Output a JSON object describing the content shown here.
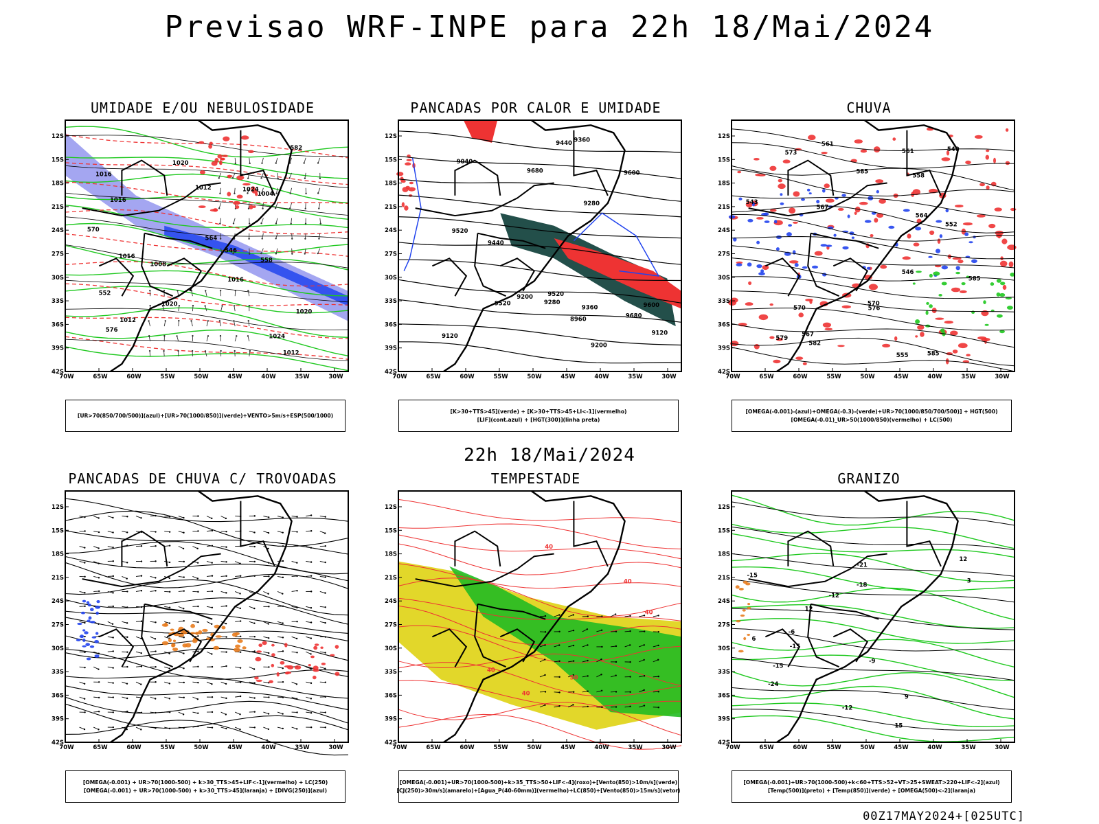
{
  "title": "Previsao WRF-INPE  para 22h 18/Mai/2024",
  "subtitle": "22h 18/Mai/2024",
  "footer": "00Z17MAY2024+[025UTC]",
  "axes": {
    "lat_labels": [
      "12S",
      "15S",
      "18S",
      "21S",
      "24S",
      "27S",
      "30S",
      "33S",
      "36S",
      "39S",
      "42S"
    ],
    "lon_labels": [
      "70W",
      "65W",
      "60W",
      "55W",
      "50W",
      "45W",
      "40W",
      "35W",
      "30W"
    ]
  },
  "colors": {
    "black": "#000000",
    "green": "#1ec81e",
    "red": "#ee3333",
    "blue": "#2244ee",
    "lavender": "#9a9cf0",
    "darkteal": "#234f4a",
    "yellow": "#e2d72a",
    "orange": "#e87c1e"
  },
  "panels": [
    {
      "id": "umidade",
      "title": "UMIDADE E/OU NEBULOSIDADE",
      "legend": [
        "[UR>70(850/700/500)](azul)+[UR>70(1000/850)](verde)+VENTO>5m/s+ESP(500/1000)"
      ],
      "contour_labels": [
        "1012",
        "1016",
        "1016",
        "1016",
        "1020",
        "1016",
        "1012",
        "1008",
        "1004",
        "1012",
        "1024",
        "1024",
        "1020",
        "1020",
        "546",
        "552",
        "558",
        "564",
        "570",
        "576",
        "582"
      ]
    },
    {
      "id": "pancadas-calor",
      "title": "PANCADAS POR CALOR E UMIDADE",
      "legend": [
        "[K>30+TTS>45](verde) + [K>30+TTS>45+LI<-1](vermelho)",
        "[LIF](cont.azul) + [HGT(300)](linha preta)"
      ],
      "contour_labels": [
        "9680",
        "9600",
        "9520",
        "9440",
        "9360",
        "9280",
        "9200",
        "9120",
        "9040",
        "8960",
        "9520",
        "9440",
        "9360",
        "9280",
        "9200",
        "9120",
        "9680",
        "9600",
        "9520"
      ]
    },
    {
      "id": "chuva",
      "title": "CHUVA",
      "legend": [
        "[OMEGA(-0.001)-(azul)+OMEGA(-0.3)-(verde)+UR>70(1000/850/700/500)] + HGT(500)",
        "[OMEGA(-0.01)_UR>50(1000/850)(vermelho) + LC(500)"
      ],
      "contour_labels": [
        "585",
        "585",
        "576",
        "579",
        "570",
        "567",
        "561",
        "558",
        "555",
        "552",
        "546",
        "540",
        "543",
        "564",
        "582",
        "573",
        "570",
        "567",
        "561",
        "585"
      ]
    },
    {
      "id": "pancadas-trovoadas",
      "title": "PANCADAS DE CHUVA C/ TROVOADAS",
      "legend": [
        "[OMEGA(-0.001) + UR>70(1000-500) + k>30_TTS>45+LIF<-1](vermelho) + LC(250)",
        "[OMEGA(-0.001) + UR>70(1000-500) + k>30_TTS>45](laranja) + [DIVG(250)](azul)"
      ],
      "contour_labels": []
    },
    {
      "id": "tempestade",
      "title": "TEMPESTADE",
      "legend": [
        "[OMEGA(-0.001)+UR>70(1000-500)+k>35_TTS>50+LIF<-4](roxo)+[Vento(850)>10m/s](verde)",
        "[CJ(250)>30m/s](amarelo)+[Agua_P(40-60mm)](vermelho)+LC(850)+[Vento(850)>15m/s](vetor)"
      ],
      "contour_labels": [
        "40",
        "40",
        "40",
        "50",
        "40",
        "40"
      ]
    },
    {
      "id": "granizo",
      "title": "GRANIZO",
      "legend": [
        "[OMEGA(-0.001)+UR>70(1000-500)+k<60+TTS>52+VT>25+SWEAT>220+LIF<-2](azul)",
        "[Temp(500)](preto) + [Temp(850)](verde) + [OMEGA(500)<-2](laranja)"
      ],
      "contour_labels": [
        "-15",
        "-12",
        "-12",
        "-15",
        "-15",
        "-18",
        "-21",
        "-24",
        "-9",
        "-6",
        "15",
        "12",
        "9",
        "6",
        "3",
        "12"
      ]
    }
  ]
}
